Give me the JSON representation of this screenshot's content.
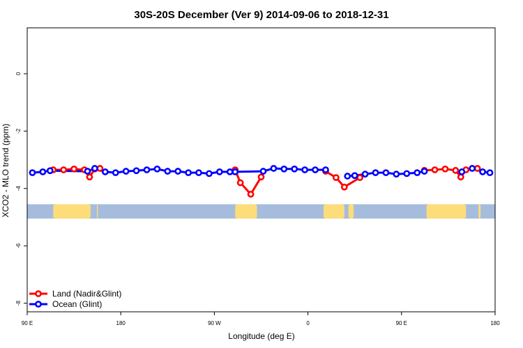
{
  "chart_data": {
    "type": "line",
    "title": "30S-20S December (Ver 9)   2014-09-06 to 2018-12-31",
    "xlabel": "Longitude (deg E)",
    "ylabel": "XCO2 - MLO trend (ppm)",
    "x_ticks": [
      {
        "pos": 90,
        "label": "90 E"
      },
      {
        "pos": 180,
        "label": "180"
      },
      {
        "pos": 270,
        "label": "90 W"
      },
      {
        "pos": 360,
        "label": "0"
      },
      {
        "pos": 450,
        "label": "90 E"
      },
      {
        "pos": 540,
        "label": "180"
      }
    ],
    "xlim": [
      90,
      540
    ],
    "y_ticks": [
      0,
      -2,
      -4,
      -6,
      -8
    ],
    "ylim": [
      -8.3,
      1.6
    ],
    "grid": false,
    "legend_position": "bottom-left",
    "map_strip": {
      "y_range": [
        -4.55,
        -5.05
      ],
      "ocean_color": "#a6bcdc",
      "land_color": "#fddc7a",
      "land_ranges": [
        [
          115,
          151
        ],
        [
          157,
          158
        ],
        [
          290,
          311
        ],
        [
          375,
          395
        ],
        [
          399,
          404
        ],
        [
          474,
          512
        ],
        [
          524,
          526
        ]
      ]
    },
    "series": [
      {
        "name": "Land (Nadir&Glint)",
        "color": "#ff0000",
        "segments": [
          [
            [
              115,
              -3.35
            ],
            [
              125,
              -3.35
            ],
            [
              135,
              -3.32
            ],
            [
              145,
              -3.35
            ],
            [
              150,
              -3.6
            ],
            [
              155,
              -3.32
            ],
            [
              160,
              -3.3
            ]
          ],
          [
            [
              290,
              -3.35
            ],
            [
              295,
              -3.8
            ],
            [
              305,
              -4.2
            ],
            [
              315,
              -3.6
            ]
          ],
          [
            [
              377,
              -3.4
            ],
            [
              387,
              -3.62
            ],
            [
              395,
              -3.95
            ],
            [
              410,
              -3.62
            ]
          ],
          [
            [
              472,
              -3.37
            ],
            [
              482,
              -3.35
            ],
            [
              492,
              -3.32
            ],
            [
              502,
              -3.37
            ],
            [
              507,
              -3.6
            ],
            [
              512,
              -3.35
            ],
            [
              523,
              -3.3
            ]
          ]
        ]
      },
      {
        "name": "Ocean (Glint)",
        "color": "#0000ff",
        "segments": [
          [
            [
              95,
              -3.45
            ],
            [
              105,
              -3.42
            ],
            [
              112,
              -3.38
            ],
            [
              148,
              -3.4
            ],
            [
              155,
              -3.3
            ],
            [
              165,
              -3.42
            ],
            [
              175,
              -3.45
            ],
            [
              185,
              -3.4
            ],
            [
              195,
              -3.38
            ],
            [
              205,
              -3.35
            ],
            [
              215,
              -3.32
            ],
            [
              225,
              -3.4
            ],
            [
              235,
              -3.4
            ],
            [
              245,
              -3.45
            ],
            [
              255,
              -3.45
            ],
            [
              265,
              -3.48
            ],
            [
              275,
              -3.42
            ],
            [
              285,
              -3.42
            ],
            [
              290,
              -3.42
            ],
            [
              317,
              -3.4
            ],
            [
              327,
              -3.3
            ],
            [
              337,
              -3.32
            ],
            [
              347,
              -3.32
            ],
            [
              357,
              -3.35
            ],
            [
              367,
              -3.35
            ],
            [
              377,
              -3.35
            ]
          ],
          [
            [
              398,
              -3.57
            ],
            [
              405,
              -3.55
            ],
            [
              415,
              -3.5
            ],
            [
              425,
              -3.45
            ],
            [
              435,
              -3.45
            ],
            [
              445,
              -3.5
            ],
            [
              455,
              -3.48
            ],
            [
              465,
              -3.45
            ],
            [
              472,
              -3.4
            ]
          ],
          [
            [
              508,
              -3.42
            ],
            [
              518,
              -3.3
            ],
            [
              528,
              -3.42
            ],
            [
              535,
              -3.45
            ]
          ]
        ]
      }
    ]
  }
}
